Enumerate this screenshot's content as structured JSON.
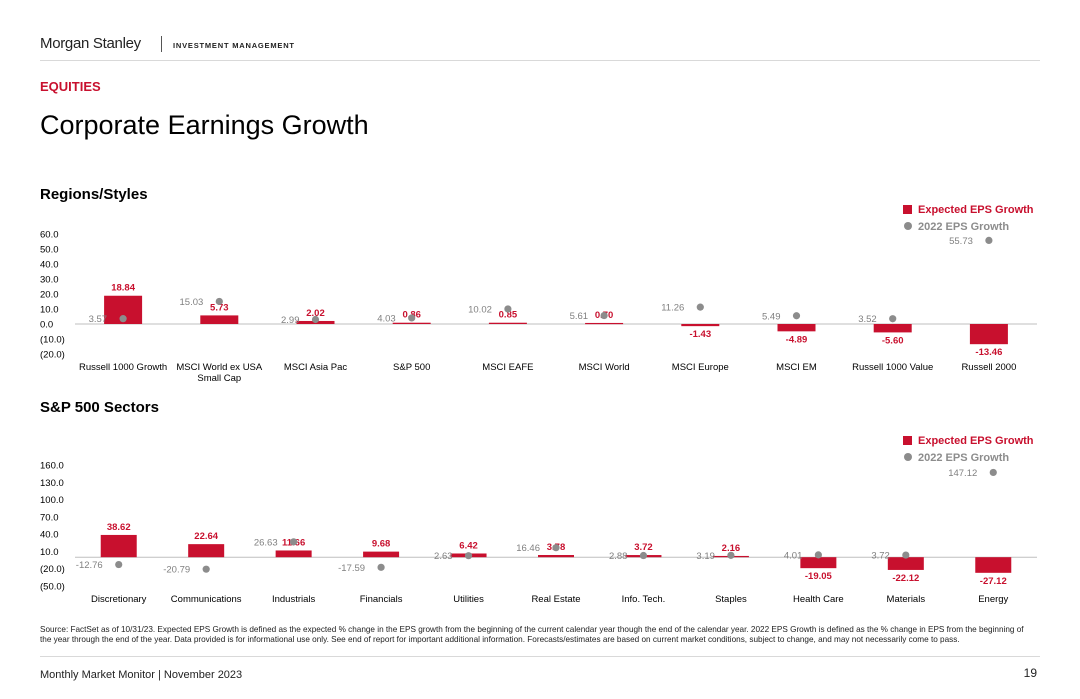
{
  "header": {
    "brand": "Morgan Stanley",
    "division": "INVESTMENT MANAGEMENT"
  },
  "section_tag": "EQUITIES",
  "page_title": "Corporate Earnings Growth",
  "colors": {
    "accent": "#c8102e",
    "marker": "#8c8c8c",
    "axis_text": "#000000",
    "dot_label": "#808080"
  },
  "chart_data": [
    {
      "type": "bar",
      "title": "Regions/Styles",
      "categories": [
        "Russell 1000 Growth",
        "MSCI World ex USA Small Cap",
        "MSCI Asia Pac",
        "S&P 500",
        "MSCI EAFE",
        "MSCI World",
        "MSCI Europe",
        "MSCI EM",
        "Russell 1000 Value",
        "Russell 2000"
      ],
      "series": [
        {
          "name": "Expected EPS Growth",
          "kind": "bar",
          "values": [
            18.84,
            5.73,
            2.02,
            0.86,
            0.85,
            0.7,
            -1.43,
            -4.89,
            -5.6,
            -13.46
          ]
        },
        {
          "name": "2022 EPS Growth",
          "kind": "dot",
          "values": [
            3.57,
            15.03,
            2.99,
            4.03,
            10.02,
            5.61,
            11.26,
            5.49,
            3.52,
            55.73
          ]
        }
      ],
      "bar_labels": [
        "18.84",
        "5.73",
        "2.02",
        "0.86",
        "0.85",
        "0.70",
        "-1.43",
        "-4.89",
        "-5.60",
        "-13.46"
      ],
      "dot_labels": [
        "3.57",
        "15.03",
        "2.99",
        "4.03",
        "10.02",
        "5.61",
        "11.26",
        "5.49",
        "3.52",
        "55.73"
      ],
      "yticks": [
        60,
        50,
        40,
        30,
        20,
        10,
        0,
        -10,
        -20
      ],
      "ytick_labels": [
        "60.0",
        "50.0",
        "40.0",
        "30.0",
        "20.0",
        "10.0",
        "0.0",
        "(10.0)",
        "(20.0)"
      ],
      "ylim": [
        -20,
        60
      ],
      "legend_position": "top-right"
    },
    {
      "type": "bar",
      "title": "S&P 500 Sectors",
      "categories": [
        "Discretionary",
        "Communications",
        "Industrials",
        "Financials",
        "Utilities",
        "Real Estate",
        "Info. Tech.",
        "Staples",
        "Health Care",
        "Materials",
        "Energy"
      ],
      "series": [
        {
          "name": "Expected EPS Growth",
          "kind": "bar",
          "values": [
            38.62,
            22.64,
            11.66,
            9.68,
            6.42,
            3.78,
            3.72,
            2.16,
            -19.05,
            -22.12,
            -27.12
          ]
        },
        {
          "name": "2022 EPS Growth",
          "kind": "dot",
          "values": [
            -12.76,
            -20.79,
            26.63,
            -17.59,
            2.63,
            16.46,
            2.88,
            3.19,
            4.01,
            3.72,
            147.12
          ]
        }
      ],
      "bar_labels": [
        "38.62",
        "22.64",
        "11.66",
        "9.68",
        "6.42",
        "3.78",
        "3.72",
        "2.16",
        "-19.05",
        "-22.12",
        "-27.12"
      ],
      "dot_labels": [
        "-12.76",
        "-20.79",
        "26.63",
        "-17.59",
        "2.63",
        "16.46",
        "2.88",
        "3.19",
        "4.01",
        "3.72",
        "147.12"
      ],
      "yticks": [
        160,
        130,
        100,
        70,
        40,
        10,
        -20,
        -50
      ],
      "ytick_labels": [
        "160.0",
        "130.0",
        "100.0",
        "70.0",
        "40.0",
        "10.0",
        "(20.0)",
        "(50.0)"
      ],
      "ylim": [
        -50,
        160
      ],
      "legend_position": "top-right"
    }
  ],
  "footnote": "Source: FactSet as of 10/31/23. Expected EPS Growth is defined as the expected % change in the EPS growth from the beginning of the current calendar year though the end of the calendar year. 2022 EPS Growth is defined as the % change in EPS from the beginning of the year through the end of the year. Data provided is for informational use only. See end of report for important additional information. Forecasts/estimates are based on current market conditions, subject to change, and may not necessarily come to pass.",
  "footer": {
    "publication": "Monthly Market Monitor | November 2023",
    "page_number": "19"
  }
}
